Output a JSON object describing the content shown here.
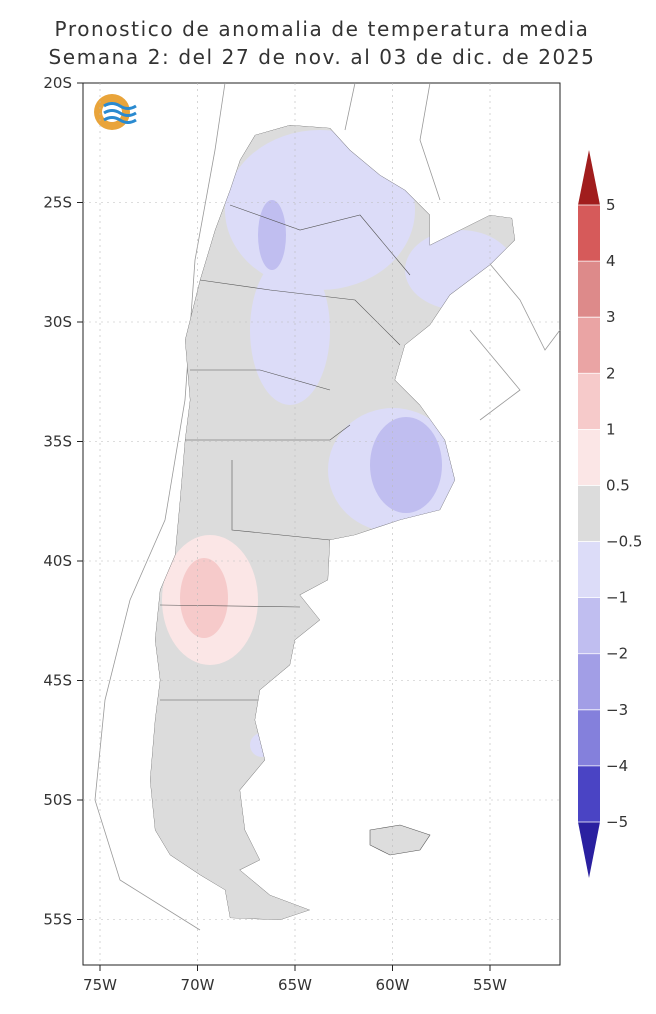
{
  "header": {
    "title": "Pronostico de anomalia de temperatura media",
    "subtitle": "Semana 2: del 27 de nov. al 03 de dic. de 2025"
  },
  "map": {
    "lat_labels": [
      "20S",
      "25S",
      "30S",
      "35S",
      "40S",
      "45S",
      "50S",
      "55S"
    ],
    "lon_labels": [
      "75W",
      "70W",
      "65W",
      "60W",
      "55W"
    ]
  },
  "colorbar": {
    "labels": [
      "5",
      "4",
      "3",
      "2",
      "1",
      "0.5",
      "−0.5",
      "−1",
      "−2",
      "−3",
      "−4",
      "−5"
    ],
    "colors": [
      "#a11d1d",
      "#d65a5a",
      "#dd8a8a",
      "#eaa4a4",
      "#f6caca",
      "#fbe6e6",
      "#dcdcdc",
      "#dcdcf8",
      "#c0bef0",
      "#a29ee6",
      "#8480dc",
      "#4a44c4",
      "#2a20a0"
    ]
  }
}
